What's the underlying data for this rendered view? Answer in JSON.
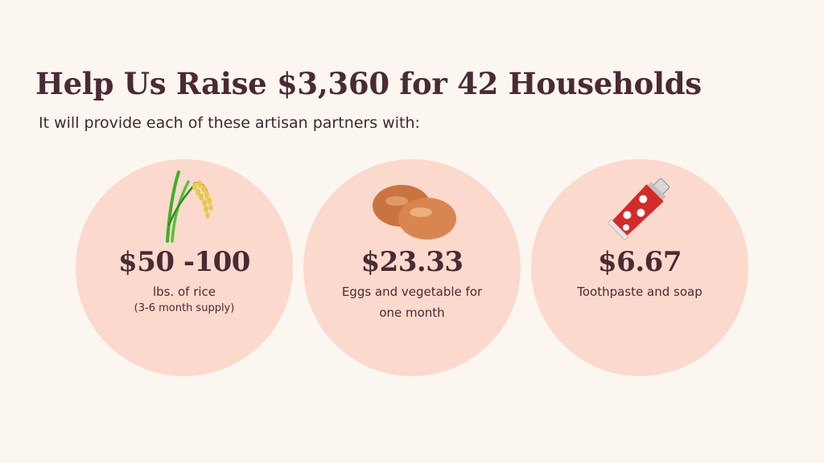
{
  "header": {
    "title": "Help Us Raise $3,360 for 42 Households",
    "subtitle": "It will provide each of these artisan partners with:"
  },
  "items": [
    {
      "icon": "rice-plant-icon",
      "price": "$50 -100",
      "description": "lbs. of rice",
      "note": "(3-6 month supply)"
    },
    {
      "icon": "eggs-icon",
      "price": "$23.33",
      "description_lines": [
        "Eggs and vegetable for",
        "one month"
      ]
    },
    {
      "icon": "toothpaste-icon",
      "price": "$6.67",
      "description": "Toothpaste and soap"
    }
  ],
  "colors": {
    "background": "#fcf6f1",
    "circle": "#fbd9cc",
    "text": "#4a2a33"
  }
}
